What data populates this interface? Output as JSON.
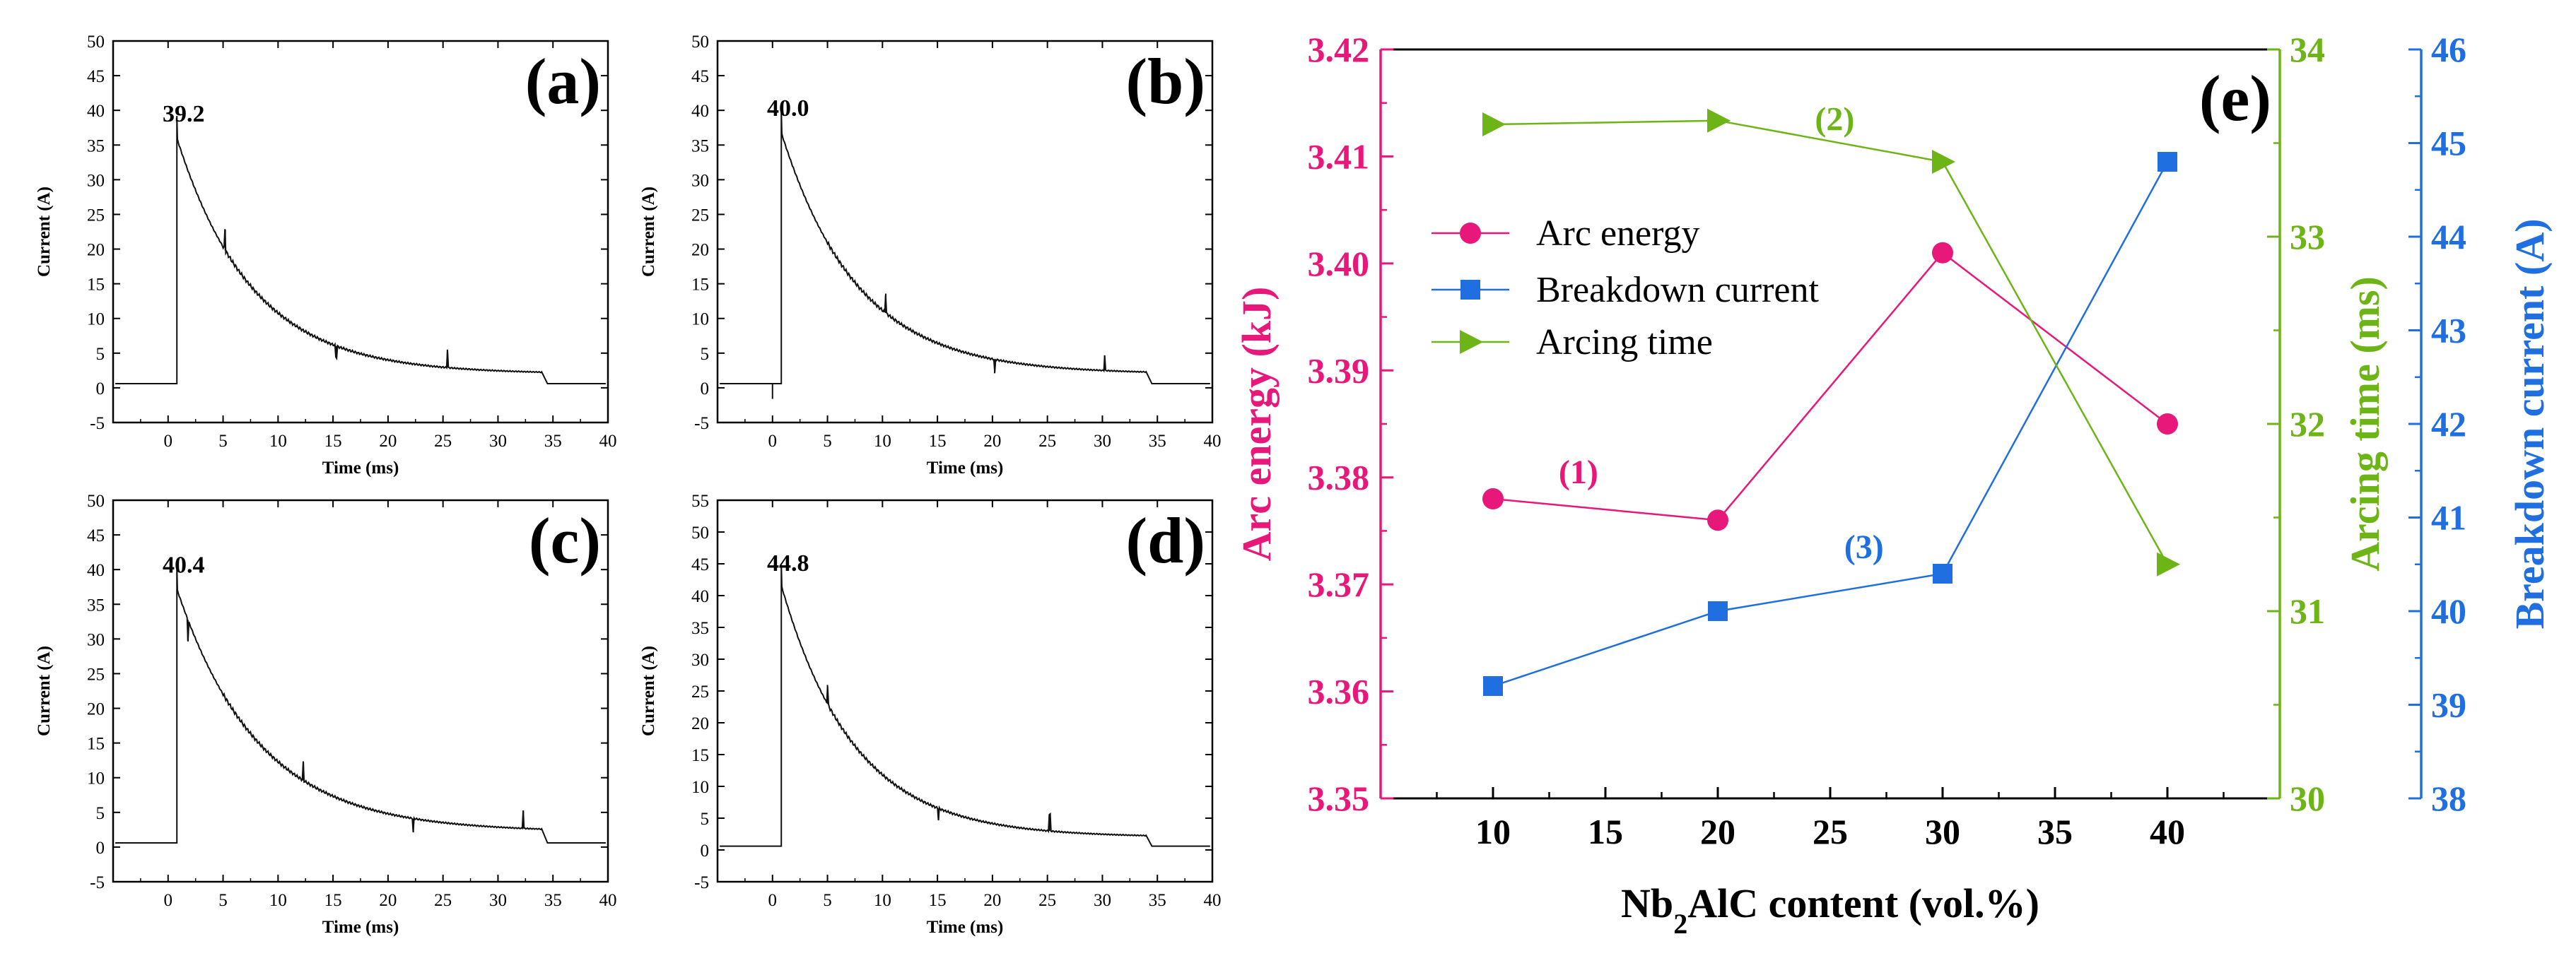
{
  "chart_data": [
    {
      "type": "line",
      "panel_label": "(a)",
      "peak_label": "39.2",
      "peak": 39.2,
      "xlabel": "Time (ms)",
      "ylabel": "Current (A)",
      "xlim": [
        -5,
        40
      ],
      "ylim": [
        -5,
        50
      ],
      "xticks": [
        "0",
        "5",
        "10",
        "15",
        "20",
        "25",
        "30",
        "35",
        "40"
      ],
      "yticks": [
        "-5",
        "0",
        "5",
        "10",
        "15",
        "20",
        "25",
        "30",
        "35",
        "40",
        "45",
        "50"
      ],
      "curve": {
        "t0": 0.8,
        "baseline": 0.6,
        "tail": 2.0,
        "tau": 6.8
      },
      "spikes": [
        [
          5.2,
          3.0
        ],
        [
          15.3,
          -1.6
        ],
        [
          25.4,
          2.6
        ]
      ]
    },
    {
      "type": "line",
      "panel_label": "(b)",
      "peak_label": "40.0",
      "peak": 40.0,
      "xlabel": "Time (ms)",
      "ylabel": "Current (A)",
      "xlim": [
        -5,
        40
      ],
      "ylim": [
        -5,
        50
      ],
      "xticks": [
        "0",
        "5",
        "10",
        "15",
        "20",
        "25",
        "30",
        "35",
        "40"
      ],
      "yticks": [
        "-5",
        "0",
        "5",
        "10",
        "15",
        "20",
        "25",
        "30",
        "35",
        "40",
        "45",
        "50"
      ],
      "curve": {
        "t0": 0.8,
        "baseline": 0.6,
        "tail": 2.0,
        "tau": 6.9
      },
      "spikes": [
        [
          0.0,
          -2.2
        ],
        [
          10.3,
          2.8
        ],
        [
          20.2,
          -2.0
        ],
        [
          30.2,
          2.2
        ]
      ]
    },
    {
      "type": "line",
      "panel_label": "(c)",
      "peak_label": "40.4",
      "peak": 40.4,
      "xlabel": "Time (ms)",
      "ylabel": "Current (A)",
      "xlim": [
        -5,
        40
      ],
      "ylim": [
        -5,
        50
      ],
      "xticks": [
        "0",
        "5",
        "10",
        "15",
        "20",
        "25",
        "30",
        "35",
        "40"
      ],
      "yticks": [
        "-5",
        "0",
        "5",
        "10",
        "15",
        "20",
        "25",
        "30",
        "35",
        "40",
        "45",
        "50"
      ],
      "curve": {
        "t0": 0.8,
        "baseline": 0.6,
        "tail": 2.2,
        "tau": 7.4
      },
      "spikes": [
        [
          1.8,
          -3.0
        ],
        [
          12.3,
          2.6
        ],
        [
          22.3,
          -2.0
        ],
        [
          32.3,
          2.6
        ]
      ]
    },
    {
      "type": "line",
      "panel_label": "(d)",
      "peak_label": "44.8",
      "peak": 44.8,
      "xlabel": "Time (ms)",
      "ylabel": "Current (A)",
      "xlim": [
        -5,
        40
      ],
      "ylim": [
        -5,
        55
      ],
      "xticks": [
        "0",
        "5",
        "10",
        "15",
        "20",
        "25",
        "30",
        "35",
        "40"
      ],
      "yticks": [
        "-5",
        "0",
        "5",
        "10",
        "15",
        "20",
        "25",
        "30",
        "35",
        "40",
        "45",
        "50",
        "55"
      ],
      "curve": {
        "t0": 0.8,
        "baseline": 0.6,
        "tail": 2.0,
        "tau": 6.6
      },
      "spikes": [
        [
          5.0,
          3.0
        ],
        [
          15.1,
          -1.8
        ],
        [
          25.2,
          2.6
        ]
      ]
    },
    {
      "type": "line",
      "panel_label": "(e)",
      "xlabel_parts": [
        "Nb",
        "2",
        "AlC content (vol.%)"
      ],
      "x": [
        10,
        20,
        30,
        40
      ],
      "xlim": [
        5,
        45
      ],
      "xticks": [
        "10",
        "15",
        "20",
        "25",
        "30",
        "35",
        "40"
      ],
      "series": [
        {
          "name": "Arc energy",
          "values": [
            3.378,
            3.376,
            3.401,
            3.385
          ],
          "color": "#e8177a",
          "marker": "circle",
          "axis": "left"
        },
        {
          "name": "Breakdown current",
          "values": [
            39.2,
            40.0,
            40.4,
            44.8
          ],
          "color": "#1f6fe0",
          "marker": "square",
          "axis": "right2"
        },
        {
          "name": "Arcing time",
          "values": [
            33.6,
            33.62,
            33.4,
            31.25
          ],
          "color": "#6db517",
          "marker": "triangle-right",
          "axis": "right1"
        }
      ],
      "axes": {
        "left": {
          "label": "Arc energy (kJ)",
          "range": [
            3.35,
            3.42
          ],
          "ticks": [
            "3.35",
            "3.36",
            "3.37",
            "3.38",
            "3.39",
            "3.40",
            "3.41",
            "3.42"
          ],
          "color": "#e8177a"
        },
        "right1": {
          "label": "Arcing time (ms)",
          "range": [
            30,
            34
          ],
          "ticks": [
            "30",
            "31",
            "32",
            "33",
            "34"
          ],
          "color": "#6db517"
        },
        "right2": {
          "label": "Breakdown current (A)",
          "range": [
            38,
            46
          ],
          "ticks": [
            "38",
            "39",
            "40",
            "41",
            "42",
            "43",
            "44",
            "45",
            "46"
          ],
          "color": "#1f6fe0"
        }
      },
      "annotations": [
        {
          "text": "(1)",
          "x": 13.8,
          "y_axis": "left",
          "y": 3.3805,
          "color": "#e8177a"
        },
        {
          "text": "(2)",
          "x": 25.2,
          "y_axis": "left",
          "y": 3.4135,
          "color": "#6db517"
        },
        {
          "text": "(3)",
          "x": 26.5,
          "y_axis": "left",
          "y": 3.3735,
          "color": "#1f6fe0"
        }
      ],
      "legend": "upper-left"
    }
  ]
}
